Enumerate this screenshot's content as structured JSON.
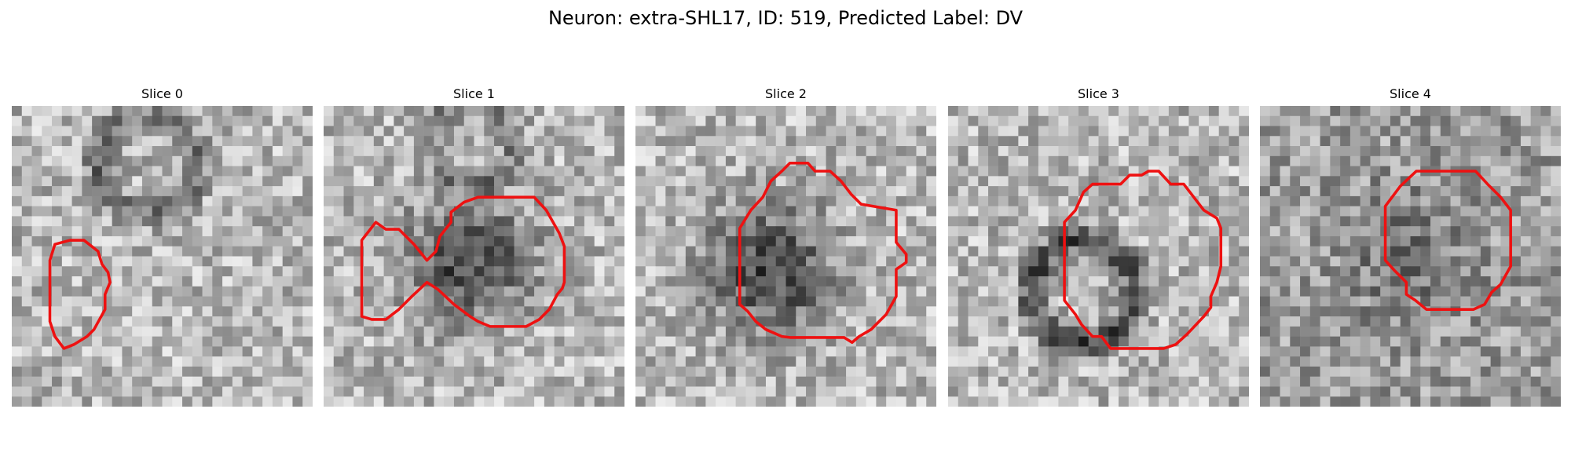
{
  "figure": {
    "title": "Neuron: extra-SHL17, ID: 519, Predicted Label: DV",
    "outline_color": "#ee1111",
    "panels": [
      {
        "title": "Slice 0",
        "seed": 11,
        "ring": [
          0.45,
          0.2,
          0.9,
          0.35
        ],
        "blob": null,
        "contour": "Slice0"
      },
      {
        "title": "Slice 1",
        "seed": 23,
        "ring": [
          0.5,
          0.12,
          0.75,
          0.25
        ],
        "blob": [
          0.48,
          0.52,
          0.8
        ],
        "contour": "Slice1"
      },
      {
        "title": "Slice 2",
        "seed": 37,
        "ring": null,
        "blob": [
          0.45,
          0.55,
          0.85
        ],
        "contour": "Slice2"
      },
      {
        "title": "Slice 3",
        "seed": 41,
        "ring": [
          0.45,
          0.62,
          0.95,
          0.55
        ],
        "blob": null,
        "contour": "Slice3"
      },
      {
        "title": "Slice 4",
        "seed": 53,
        "ring": null,
        "blob": [
          0.5,
          0.5,
          0.35
        ],
        "contour": "Slice4"
      }
    ]
  }
}
